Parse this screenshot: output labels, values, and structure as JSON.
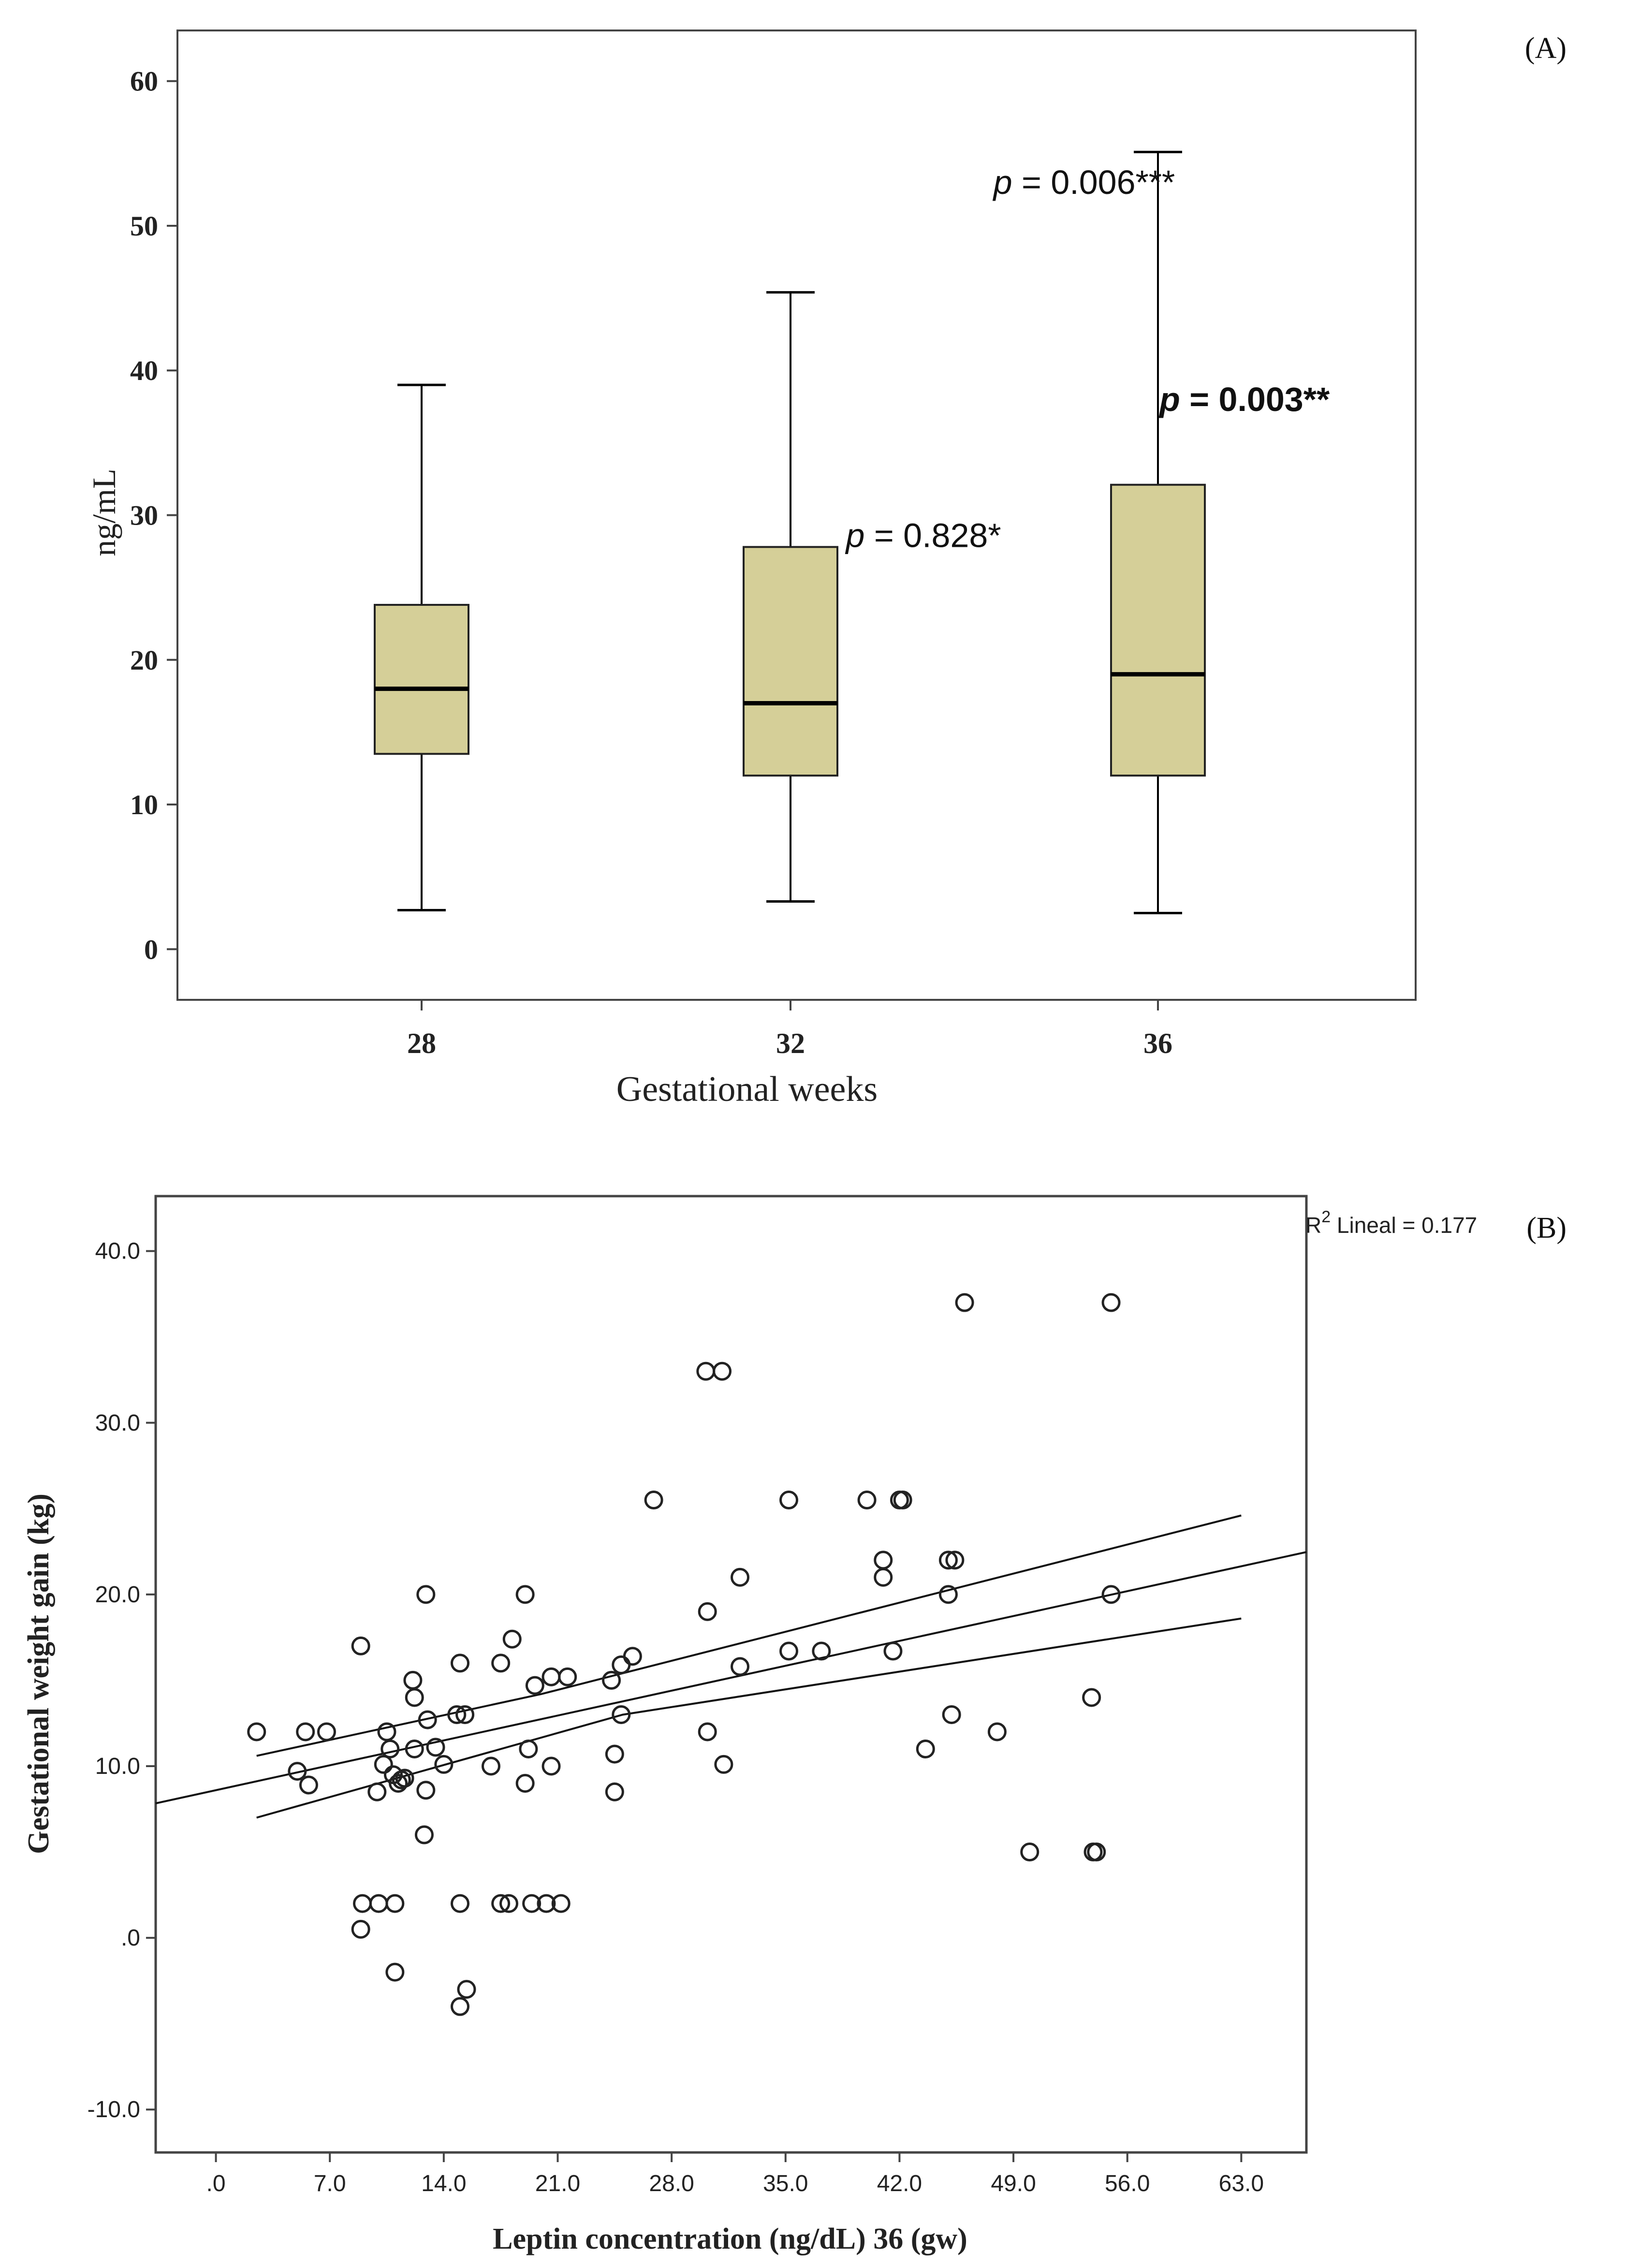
{
  "chart_data": [
    {
      "type": "box",
      "panel_label": "(A)",
      "xlabel": "Gestational weeks",
      "ylabel": "ng/mL",
      "ylim": [
        -3.5,
        63.5
      ],
      "yticks": [
        0,
        10,
        20,
        30,
        40,
        50,
        60
      ],
      "categories": [
        "28",
        "32",
        "36"
      ],
      "boxes": [
        {
          "category": "28",
          "min": 2.7,
          "q1": 13.5,
          "median": 18.0,
          "q3": 23.8,
          "max": 39.0
        },
        {
          "category": "32",
          "min": 3.3,
          "q1": 12.0,
          "median": 17.0,
          "q3": 27.8,
          "max": 45.4
        },
        {
          "category": "36",
          "min": 2.5,
          "q1": 12.0,
          "median": 19.0,
          "q3": 32.1,
          "max": 55.1
        }
      ],
      "box_color": "#d5cf98",
      "annotations": [
        {
          "italic": "p",
          "rest": " = 0.828*",
          "bold": false,
          "x_cat": 1.15,
          "y": 27.8
        },
        {
          "italic": "p",
          "rest": " = 0.006***",
          "bold": false,
          "x_cat": 1.55,
          "y": 52.2
        },
        {
          "italic": "p",
          "rest": " = 0.003**",
          "bold": true,
          "x_cat": 2.0,
          "y": 37.2
        }
      ]
    },
    {
      "type": "scatter",
      "panel_label": "(B)",
      "xlabel": "Leptin concentration (ng/dL) 36 (gw)",
      "ylabel": "Gestational weight gain (kg)",
      "xlim": [
        -3.7,
        67.0
      ],
      "ylim": [
        -12.5,
        43.2
      ],
      "xticks": [
        ".0",
        "7.0",
        "14.0",
        "21.0",
        "28.0",
        "35.0",
        "42.0",
        "49.0",
        "56.0",
        "63.0"
      ],
      "yticks": [
        "-10.0",
        ".0",
        "10.0",
        "20.0",
        "30.0",
        "40.0"
      ],
      "r2_label_sup": "2",
      "r2_label_base": "R",
      "r2_label_text": " Lineal = 0.177",
      "fit": {
        "intercept": 8.6,
        "slope": 0.207,
        "x_range": [
          -3.7,
          67.0
        ]
      },
      "ci_upper": [
        [
          2.5,
          10.6
        ],
        [
          20.0,
          14.2
        ],
        [
          63.0,
          24.6
        ]
      ],
      "ci_lower": [
        [
          2.5,
          7.0
        ],
        [
          25.0,
          13.0
        ],
        [
          63.0,
          18.6
        ]
      ],
      "points": [
        [
          2.5,
          12.0
        ],
        [
          5.0,
          9.7
        ],
        [
          5.5,
          12.0
        ],
        [
          5.7,
          8.9
        ],
        [
          6.8,
          12.0
        ],
        [
          8.9,
          17.0
        ],
        [
          8.9,
          0.5
        ],
        [
          9.0,
          2.0
        ],
        [
          9.9,
          8.5
        ],
        [
          10.0,
          2.0
        ],
        [
          10.3,
          10.1
        ],
        [
          10.5,
          12.0
        ],
        [
          10.7,
          11.0
        ],
        [
          10.9,
          9.5
        ],
        [
          11.0,
          2.0
        ],
        [
          11.0,
          -2.0
        ],
        [
          11.2,
          9.0
        ],
        [
          11.4,
          9.2
        ],
        [
          11.6,
          9.3
        ],
        [
          12.1,
          15.0
        ],
        [
          12.2,
          14.0
        ],
        [
          12.2,
          11.0
        ],
        [
          12.8,
          6.0
        ],
        [
          12.9,
          20.0
        ],
        [
          12.9,
          8.6
        ],
        [
          13.0,
          12.7
        ],
        [
          13.5,
          11.1
        ],
        [
          14.0,
          10.1
        ],
        [
          14.8,
          13.0
        ],
        [
          15.0,
          16.0
        ],
        [
          15.0,
          2.0
        ],
        [
          15.0,
          -4.0
        ],
        [
          15.3,
          13.0
        ],
        [
          15.4,
          -3.0
        ],
        [
          16.9,
          10.0
        ],
        [
          17.5,
          16.0
        ],
        [
          17.5,
          2.0
        ],
        [
          18.0,
          2.0
        ],
        [
          18.2,
          17.4
        ],
        [
          19.0,
          20.0
        ],
        [
          19.0,
          9.0
        ],
        [
          19.2,
          11.0
        ],
        [
          19.4,
          2.0
        ],
        [
          19.6,
          14.7
        ],
        [
          20.3,
          2.0
        ],
        [
          20.6,
          10.0
        ],
        [
          20.6,
          15.2
        ],
        [
          21.2,
          2.0
        ],
        [
          21.6,
          15.2
        ],
        [
          24.3,
          15.0
        ],
        [
          24.5,
          10.7
        ],
        [
          24.5,
          8.5
        ],
        [
          24.9,
          13.0
        ],
        [
          24.9,
          15.9
        ],
        [
          25.6,
          16.4
        ],
        [
          26.9,
          25.5
        ],
        [
          30.1,
          33.0
        ],
        [
          30.2,
          19.0
        ],
        [
          30.2,
          12.0
        ],
        [
          31.1,
          33.0
        ],
        [
          31.2,
          10.1
        ],
        [
          32.2,
          21.0
        ],
        [
          32.2,
          15.8
        ],
        [
          35.2,
          25.5
        ],
        [
          35.2,
          16.7
        ],
        [
          37.2,
          16.7
        ],
        [
          40.0,
          25.5
        ],
        [
          41.0,
          22.0
        ],
        [
          41.0,
          21.0
        ],
        [
          41.6,
          16.7
        ],
        [
          42.0,
          25.5
        ],
        [
          42.2,
          25.5
        ],
        [
          43.6,
          11.0
        ],
        [
          45.0,
          22.0
        ],
        [
          45.0,
          20.0
        ],
        [
          45.2,
          13.0
        ],
        [
          45.4,
          22.0
        ],
        [
          46.0,
          37.0
        ],
        [
          48.0,
          12.0
        ],
        [
          50.0,
          5.0
        ],
        [
          53.8,
          14.0
        ],
        [
          53.9,
          5.0
        ],
        [
          54.1,
          5.0
        ],
        [
          55.0,
          37.0
        ],
        [
          55.0,
          20.0
        ]
      ]
    }
  ]
}
